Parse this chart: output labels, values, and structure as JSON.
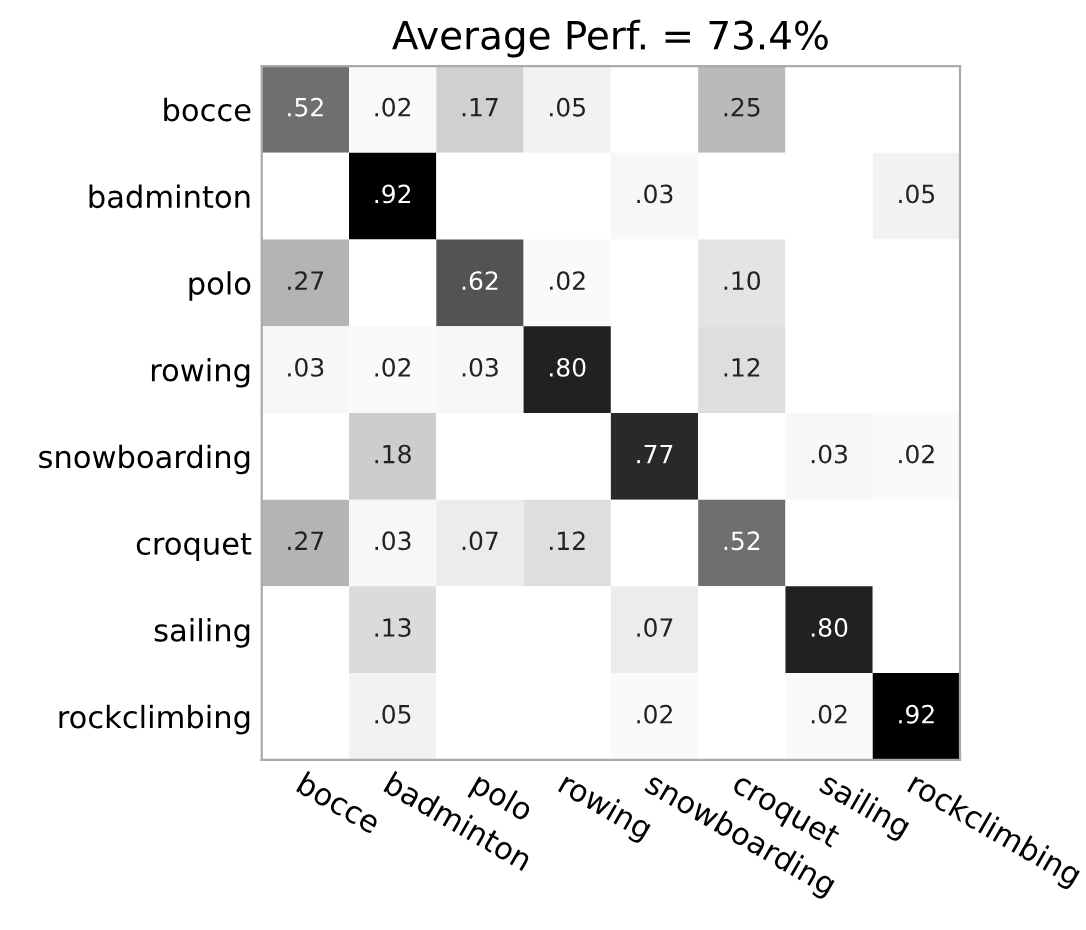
{
  "chart_data": {
    "type": "heatmap",
    "title": "Average Perf. = 73.4%",
    "categories": [
      "bocce",
      "badminton",
      "polo",
      "rowing",
      "snowboarding",
      "croquet",
      "sailing",
      "rockclimbing"
    ],
    "y_categories": [
      "bocce",
      "badminton",
      "polo",
      "rowing",
      "snowboarding",
      "croquet",
      "sailing",
      "rockclimbing"
    ],
    "cells": [
      [
        0.52,
        0.02,
        0.17,
        0.05,
        null,
        0.25,
        null,
        null
      ],
      [
        null,
        0.92,
        null,
        null,
        0.03,
        null,
        null,
        0.05
      ],
      [
        0.27,
        null,
        0.62,
        0.02,
        null,
        0.1,
        null,
        null
      ],
      [
        0.03,
        0.02,
        0.03,
        0.8,
        null,
        0.12,
        null,
        null
      ],
      [
        null,
        0.18,
        null,
        null,
        0.77,
        null,
        0.03,
        0.02
      ],
      [
        0.27,
        0.03,
        0.07,
        0.12,
        null,
        0.52,
        null,
        null
      ],
      [
        null,
        0.13,
        null,
        null,
        0.07,
        null,
        0.8,
        null
      ],
      [
        null,
        0.05,
        null,
        null,
        0.02,
        null,
        0.02,
        0.92
      ]
    ],
    "cell_labels": [
      [
        ".52",
        ".02",
        ".17",
        ".05",
        null,
        ".25",
        null,
        null
      ],
      [
        null,
        ".92",
        null,
        null,
        ".03",
        null,
        null,
        ".05"
      ],
      [
        ".27",
        null,
        ".62",
        ".02",
        null,
        ".10",
        null,
        null
      ],
      [
        ".03",
        ".02",
        ".03",
        ".80",
        null,
        ".12",
        null,
        null
      ],
      [
        null,
        ".18",
        null,
        null,
        ".77",
        null,
        ".03",
        ".02"
      ],
      [
        ".27",
        ".03",
        ".07",
        ".12",
        null,
        ".52",
        null,
        null
      ],
      [
        null,
        ".13",
        null,
        null,
        ".07",
        null,
        ".80",
        null
      ],
      [
        null,
        ".05",
        null,
        null,
        ".02",
        null,
        ".02",
        ".92"
      ]
    ]
  }
}
